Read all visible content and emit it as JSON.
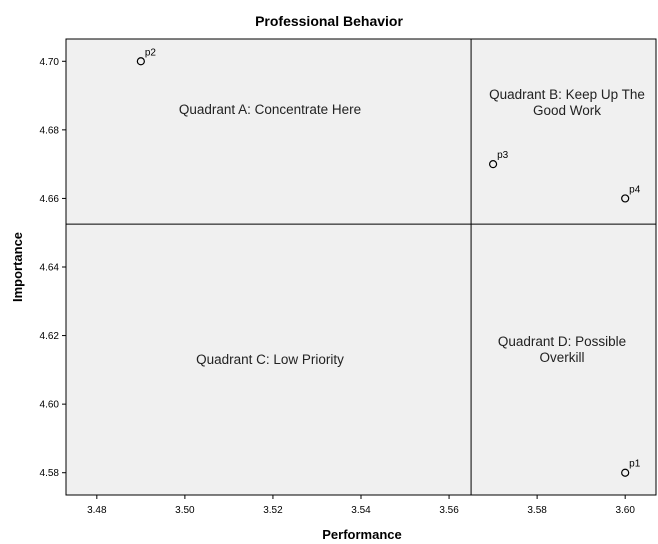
{
  "chart_data": {
    "type": "scatter",
    "title": "Professional Behavior",
    "xlabel": "Performance",
    "ylabel": "Importance",
    "xlim": [
      3.473,
      3.607
    ],
    "ylim": [
      4.5735,
      4.7065
    ],
    "xticks": [
      "3.48",
      "3.50",
      "3.52",
      "3.54",
      "3.56",
      "3.58",
      "3.60"
    ],
    "yticks": [
      "4.58",
      "4.60",
      "4.62",
      "4.64",
      "4.66",
      "4.68",
      "4.70"
    ],
    "grid": false,
    "legend": "none",
    "points": [
      {
        "label": "p1",
        "x": 3.6,
        "y": 4.58
      },
      {
        "label": "p2",
        "x": 3.49,
        "y": 4.7
      },
      {
        "label": "p3",
        "x": 3.57,
        "y": 4.67
      },
      {
        "label": "p4",
        "x": 3.6,
        "y": 4.66
      }
    ],
    "reference_lines": {
      "x": 3.565,
      "y": 4.6525
    },
    "quadrants": {
      "a": {
        "line1": "Quadrant A: Concentrate Here",
        "line2": ""
      },
      "b": {
        "line1": "Quadrant B: Keep Up The",
        "line2": "Good Work"
      },
      "c": {
        "line1": "Quadrant C: Low Priority",
        "line2": ""
      },
      "d": {
        "line1": "Quadrant D: Possible",
        "line2": "Overkill"
      }
    },
    "colors": {
      "plot_background": "#f0f0f0",
      "lines": "#000000",
      "marker": "#000000"
    }
  }
}
